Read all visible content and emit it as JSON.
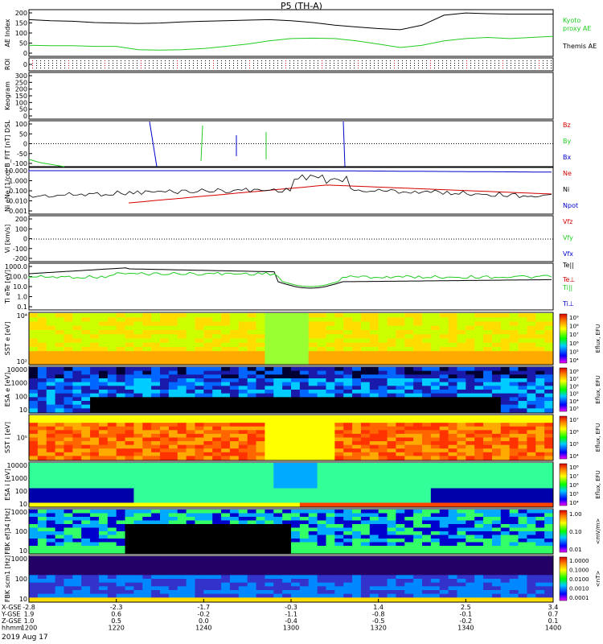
{
  "title": "P5 (TH-A)",
  "date_label": "2019 Aug 17",
  "colors": {
    "red": "#d40000",
    "green": "#22cc22",
    "blue": "#0000cc",
    "black": "#000000"
  },
  "chart_data": [
    {
      "type": "line",
      "id": "ae",
      "ylabel": "AE Index",
      "yticks": [
        "200",
        "150",
        "100",
        "50",
        "0"
      ],
      "ylim": [
        0,
        210
      ],
      "x": [
        1200,
        1205,
        1210,
        1215,
        1220,
        1225,
        1230,
        1235,
        1240,
        1245,
        1250,
        1255,
        1300,
        1305,
        1310,
        1315,
        1320,
        1325,
        1330,
        1335,
        1340,
        1345,
        1350,
        1355,
        1400
      ],
      "series": [
        {
          "name": "Themis AE",
          "color": "#000000",
          "values": [
            165,
            160,
            158,
            152,
            150,
            148,
            150,
            155,
            158,
            160,
            163,
            165,
            160,
            152,
            140,
            132,
            125,
            120,
            140,
            185,
            195,
            192,
            190,
            190,
            190
          ]
        },
        {
          "name": "Kyoto proxy AE",
          "color": "#22cc22",
          "values": [
            50,
            48,
            48,
            45,
            45,
            30,
            28,
            30,
            35,
            45,
            55,
            70,
            80,
            82,
            80,
            70,
            55,
            40,
            50,
            70,
            80,
            85,
            80,
            85,
            90
          ]
        }
      ],
      "legend": [
        "Kyoto",
        "proxy AE",
        "Themis AE"
      ]
    },
    {
      "type": "line",
      "id": "roi",
      "ylabel": "ROI",
      "yticks": [
        "0"
      ]
    },
    {
      "type": "line",
      "id": "keogram",
      "ylabel": "Keogram",
      "yticks": [
        "300",
        "250",
        "200",
        "150",
        "100",
        "50",
        "0"
      ]
    },
    {
      "type": "line",
      "id": "bfit",
      "ylabel": "B_FIT [nT] DSL",
      "yticks": [
        "100",
        "50",
        "0",
        "-50",
        "-100"
      ],
      "ylim": [
        -110,
        110
      ],
      "legend": [
        "Bz",
        "By",
        "Bx"
      ]
    },
    {
      "type": "line",
      "id": "density",
      "ylabel": "Ni eNe [1/cc]",
      "yticks": [
        "10.000",
        "1.000",
        "0.100",
        "0.010",
        "0.001"
      ],
      "legend": [
        "Ne",
        "Ni",
        "Npot"
      ]
    },
    {
      "type": "line",
      "id": "velocity",
      "ylabel": "Vi [km/s]",
      "yticks": [
        "200",
        "100",
        "0",
        "-100",
        "-200"
      ],
      "legend": [
        "Vfz",
        "Vfy",
        "Vfx"
      ]
    },
    {
      "type": "line",
      "id": "temperature",
      "ylabel": "Ti eTe [eV]",
      "yticks": [
        "1000.0",
        "100.0",
        "10.0",
        "1.0",
        "0.1"
      ],
      "legend": [
        "Te||",
        "Te⊥",
        "Ti||",
        "Ti⊥"
      ]
    },
    {
      "type": "heatmap",
      "id": "sst_e",
      "ylabel": "SST e [eV]",
      "yticks": [
        "10⁴",
        "10²"
      ],
      "cbar": [
        "10⁹",
        "10⁸",
        "10⁷",
        "10⁶",
        "10⁵",
        "10⁴"
      ],
      "cbar_label": "Eflux, EFU"
    },
    {
      "type": "heatmap",
      "id": "esa_e",
      "ylabel": "ESA e [eV]",
      "yticks": [
        "10000",
        "1000",
        "100",
        "10"
      ],
      "cbar": [
        "10⁸",
        "10⁷",
        "10⁶",
        "10⁵",
        "10⁴",
        "10³"
      ],
      "cbar_label": "Eflux, EFU"
    },
    {
      "type": "heatmap",
      "id": "sst_i",
      "ylabel": "SST i [eV]",
      "yticks": [
        "10⁵"
      ],
      "cbar": [
        "10⁷",
        "10⁶",
        "10⁵",
        "10⁴"
      ],
      "cbar_label": "Eflux, EFU"
    },
    {
      "type": "heatmap",
      "id": "esa_i",
      "ylabel": "ESA i [eV]",
      "yticks": [
        "10000",
        "1000",
        "100",
        "10"
      ],
      "cbar": [
        "10⁸",
        "10⁷",
        "10⁶",
        "10⁵",
        "10⁴"
      ],
      "cbar_label": "Eflux, EFU"
    },
    {
      "type": "heatmap",
      "id": "fbk_e",
      "ylabel": "FBK ef|34 [Hz]",
      "yticks": [
        "1000",
        "100",
        "10"
      ],
      "cbar": [
        "1.00",
        "0.10",
        "0.01"
      ],
      "cbar_label": "<mV/m>"
    },
    {
      "type": "heatmap",
      "id": "fbk_b",
      "ylabel": "FBK scm1 [Hz]",
      "yticks": [
        "1000",
        "100",
        "10"
      ],
      "cbar": [
        "1.0000",
        "0.1000",
        "0.0100",
        "0.0010",
        "0.0001"
      ],
      "cbar_label": "<nT>"
    }
  ],
  "xaxis": {
    "row_labels": [
      "X-GSE",
      "Y-GSE",
      "Z-GSE",
      "hhmm"
    ],
    "columns": [
      {
        "x": 1200,
        "vals": [
          "-2.8",
          "1.9",
          "1.0",
          "1200"
        ]
      },
      {
        "x": 1220,
        "vals": [
          "-2.3",
          "0.6",
          "0.5",
          "1220"
        ]
      },
      {
        "x": 1240,
        "vals": [
          "-1.7",
          "-0.2",
          "0.0",
          "1240"
        ]
      },
      {
        "x": 1300,
        "vals": [
          "-0.3",
          "-1.1",
          "-0.4",
          "1300"
        ]
      },
      {
        "x": 1320,
        "vals": [
          "1.4",
          "-0.8",
          "-0.5",
          "1320"
        ]
      },
      {
        "x": 1340,
        "vals": [
          "2.5",
          "-0.1",
          "-0.2",
          "1340"
        ]
      },
      {
        "x": 1400,
        "vals": [
          "3.4",
          "0.7",
          "0.1",
          "1400"
        ]
      }
    ]
  }
}
